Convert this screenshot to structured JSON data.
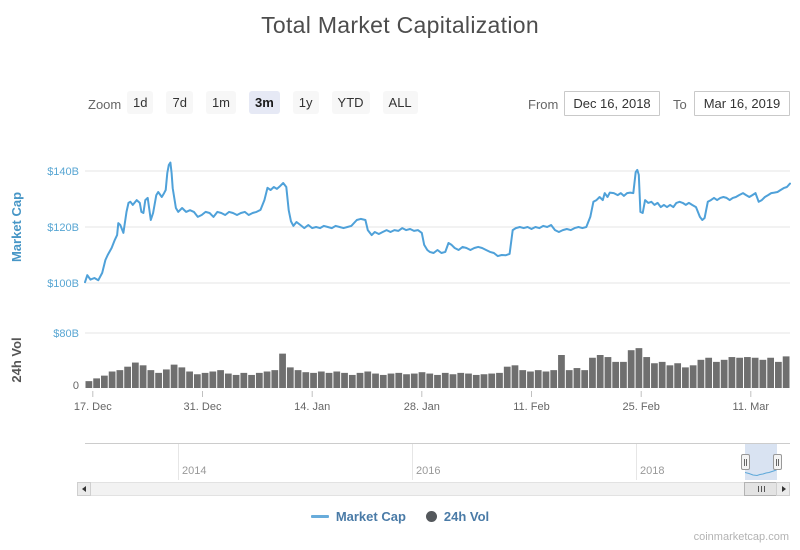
{
  "title": "Total Market Capitalization",
  "toolbar": {
    "zoom_label": "Zoom",
    "buttons": [
      {
        "label": "1d",
        "selected": false
      },
      {
        "label": "7d",
        "selected": false
      },
      {
        "label": "1m",
        "selected": false
      },
      {
        "label": "3m",
        "selected": true
      },
      {
        "label": "1y",
        "selected": false
      },
      {
        "label": "YTD",
        "selected": false
      },
      {
        "label": "ALL",
        "selected": false
      }
    ],
    "from_label": "From",
    "from_value": "Dec 16, 2018",
    "to_label": "To",
    "to_value": "Mar 16, 2019"
  },
  "chart_data": {
    "type": [
      "line",
      "bar"
    ],
    "x_axis": {
      "start": "Dec 16, 2018",
      "end": "Mar 16, 2019",
      "range_days": 90,
      "ticklabels": [
        "17. Dec",
        "31. Dec",
        "14. Jan",
        "28. Jan",
        "11. Feb",
        "25. Feb",
        "11. Mar"
      ],
      "tick_days": [
        1,
        15,
        29,
        43,
        57,
        71,
        85
      ]
    },
    "market_cap": {
      "name": "Market Cap",
      "type": "line",
      "unit": "USD billions",
      "color": "#4fa1d9",
      "ylim": [
        97,
        146
      ],
      "yticks": [
        {
          "label": "$100B",
          "value": 100
        },
        {
          "label": "$120B",
          "value": 120
        },
        {
          "label": "$140B",
          "value": 140
        }
      ],
      "axis_title": "Market Cap",
      "points": [
        [
          0,
          100.3
        ],
        [
          0.3,
          102.8
        ],
        [
          0.7,
          101.2
        ],
        [
          1.2,
          101.8
        ],
        [
          1.7,
          101
        ],
        [
          2.2,
          103.6
        ],
        [
          2.6,
          108.2
        ],
        [
          2.9,
          110
        ],
        [
          3.4,
          112.5
        ],
        [
          3.8,
          115.4
        ],
        [
          4.1,
          117.1
        ],
        [
          4.25,
          121.4
        ],
        [
          4.5,
          120.7
        ],
        [
          4.9,
          117.9
        ],
        [
          5.3,
          125.4
        ],
        [
          5.55,
          128.6
        ],
        [
          5.8,
          129
        ],
        [
          6.1,
          127.9
        ],
        [
          6.6,
          129.6
        ],
        [
          7,
          128.6
        ],
        [
          7.2,
          125.4
        ],
        [
          7.45,
          125
        ],
        [
          7.7,
          129.6
        ],
        [
          8,
          130.4
        ],
        [
          8.4,
          122.5
        ],
        [
          8.7,
          125
        ],
        [
          9.1,
          131.4
        ],
        [
          9.35,
          132.5
        ],
        [
          9.8,
          130.7
        ],
        [
          10.1,
          132.1
        ],
        [
          10.3,
          133.2
        ],
        [
          10.5,
          139.3
        ],
        [
          10.7,
          142.1
        ],
        [
          10.9,
          143
        ],
        [
          11.05,
          139.3
        ],
        [
          11.2,
          133.9
        ],
        [
          11.6,
          126.8
        ],
        [
          11.9,
          125.4
        ],
        [
          12.4,
          126.8
        ],
        [
          12.9,
          125.4
        ],
        [
          13.4,
          126
        ],
        [
          13.9,
          125.4
        ],
        [
          14.4,
          123.6
        ],
        [
          14.9,
          124.3
        ],
        [
          15.4,
          125.4
        ],
        [
          15.9,
          125
        ],
        [
          16.4,
          123.6
        ],
        [
          16.9,
          125.4
        ],
        [
          17.4,
          125
        ],
        [
          17.9,
          124.3
        ],
        [
          18.4,
          125.4
        ],
        [
          18.9,
          125
        ],
        [
          19.4,
          124.3
        ],
        [
          19.9,
          125
        ],
        [
          20.4,
          125.4
        ],
        [
          20.9,
          124.3
        ],
        [
          21.4,
          125
        ],
        [
          21.9,
          125.4
        ],
        [
          22.4,
          126.1
        ],
        [
          22.9,
          129.6
        ],
        [
          23.3,
          134
        ],
        [
          23.7,
          133.2
        ],
        [
          24.1,
          134.3
        ],
        [
          24.5,
          133.6
        ],
        [
          24.9,
          134.6
        ],
        [
          25.3,
          135.7
        ],
        [
          25.7,
          134.3
        ],
        [
          26,
          126
        ],
        [
          26.3,
          122
        ],
        [
          26.6,
          120.4
        ],
        [
          27,
          121.8
        ],
        [
          27.5,
          120.7
        ],
        [
          28,
          119.6
        ],
        [
          28.5,
          120.7
        ],
        [
          29,
          119.6
        ],
        [
          29.5,
          120
        ],
        [
          30,
          119.6
        ],
        [
          30.5,
          120.4
        ],
        [
          31,
          120
        ],
        [
          31.5,
          119.6
        ],
        [
          32,
          120.4
        ],
        [
          32.5,
          120
        ],
        [
          33,
          119.6
        ],
        [
          33.5,
          120
        ],
        [
          34,
          120.4
        ],
        [
          34.7,
          122.5
        ],
        [
          35.2,
          122.9
        ],
        [
          35.8,
          122.5
        ],
        [
          36.1,
          118.9
        ],
        [
          36.6,
          117.1
        ],
        [
          37,
          118.2
        ],
        [
          37.5,
          117.5
        ],
        [
          38,
          118.2
        ],
        [
          38.5,
          118.9
        ],
        [
          39,
          118.2
        ],
        [
          39.5,
          118.9
        ],
        [
          40,
          118.6
        ],
        [
          40.5,
          119.6
        ],
        [
          41,
          118.9
        ],
        [
          41.5,
          119.3
        ],
        [
          42,
          118.6
        ],
        [
          42.5,
          118.9
        ],
        [
          43,
          117.9
        ],
        [
          43.3,
          113.6
        ],
        [
          43.7,
          111.8
        ],
        [
          44,
          111.1
        ],
        [
          44.5,
          110.7
        ],
        [
          45,
          111.8
        ],
        [
          45.5,
          110.7
        ],
        [
          46,
          111.1
        ],
        [
          46.4,
          114.3
        ],
        [
          46.8,
          113.6
        ],
        [
          47.2,
          112.5
        ],
        [
          47.7,
          111.8
        ],
        [
          48.2,
          112.9
        ],
        [
          48.7,
          112.5
        ],
        [
          49.2,
          111.8
        ],
        [
          49.7,
          112.5
        ],
        [
          50.2,
          112.9
        ],
        [
          50.7,
          112.5
        ],
        [
          51.2,
          111.8
        ],
        [
          51.7,
          111.1
        ],
        [
          52.2,
          110.7
        ],
        [
          52.7,
          109.6
        ],
        [
          53.2,
          110
        ],
        [
          53.7,
          109.9
        ],
        [
          54.2,
          110.4
        ],
        [
          54.6,
          118.9
        ],
        [
          55,
          119.6
        ],
        [
          55.5,
          120
        ],
        [
          56,
          119.6
        ],
        [
          56.5,
          120
        ],
        [
          57,
          119.3
        ],
        [
          57.5,
          120
        ],
        [
          58,
          119.6
        ],
        [
          58.5,
          120.4
        ],
        [
          59,
          120
        ],
        [
          59.5,
          120.7
        ],
        [
          60,
          118.9
        ],
        [
          60.5,
          118.2
        ],
        [
          61,
          118.9
        ],
        [
          61.5,
          119.3
        ],
        [
          62,
          118.9
        ],
        [
          62.5,
          119.6
        ],
        [
          63,
          120
        ],
        [
          63.5,
          119.6
        ],
        [
          64,
          120
        ],
        [
          64.5,
          123.6
        ],
        [
          64.9,
          129
        ],
        [
          65.3,
          129.6
        ],
        [
          65.7,
          130.7
        ],
        [
          66.1,
          129.6
        ],
        [
          66.35,
          132.1
        ],
        [
          66.7,
          130.7
        ],
        [
          67,
          132.3
        ],
        [
          67.5,
          132.1
        ],
        [
          68,
          131.4
        ],
        [
          68.4,
          132.1
        ],
        [
          68.8,
          131.1
        ],
        [
          69.2,
          132.1
        ],
        [
          69.6,
          132.3
        ],
        [
          70,
          132.1
        ],
        [
          70.3,
          139.6
        ],
        [
          70.5,
          140.4
        ],
        [
          70.7,
          138.6
        ],
        [
          70.9,
          125.4
        ],
        [
          71.2,
          125
        ],
        [
          71.5,
          129.6
        ],
        [
          71.9,
          128.6
        ],
        [
          72.3,
          129
        ],
        [
          72.7,
          127.9
        ],
        [
          73.1,
          128.6
        ],
        [
          73.5,
          127.1
        ],
        [
          73.9,
          127.9
        ],
        [
          74.3,
          127.1
        ],
        [
          74.7,
          127.9
        ],
        [
          75.1,
          127.1
        ],
        [
          75.5,
          128.6
        ],
        [
          75.9,
          129
        ],
        [
          76.3,
          128.6
        ],
        [
          76.7,
          127.9
        ],
        [
          77.1,
          128.6
        ],
        [
          77.5,
          127.9
        ],
        [
          78,
          127.1
        ],
        [
          78.5,
          123.6
        ],
        [
          78.8,
          122.5
        ],
        [
          79.1,
          123.2
        ],
        [
          79.5,
          129
        ],
        [
          79.9,
          129.6
        ],
        [
          80.3,
          130.4
        ],
        [
          80.7,
          129.6
        ],
        [
          81.1,
          130.4
        ],
        [
          81.5,
          130.7
        ],
        [
          81.9,
          130.4
        ],
        [
          82.3,
          129.6
        ],
        [
          82.7,
          130.4
        ],
        [
          83.1,
          130.7
        ],
        [
          83.5,
          131.4
        ],
        [
          84,
          132.1
        ],
        [
          84.4,
          131.4
        ],
        [
          84.8,
          130.7
        ],
        [
          85.2,
          131.4
        ],
        [
          85.6,
          132.1
        ],
        [
          86,
          129
        ],
        [
          86.4,
          129.6
        ],
        [
          86.8,
          130.7
        ],
        [
          87.2,
          131.4
        ],
        [
          87.6,
          132.1
        ],
        [
          88,
          132.3
        ],
        [
          88.4,
          132.5
        ],
        [
          88.8,
          133.2
        ],
        [
          89.2,
          133.9
        ],
        [
          89.6,
          134.3
        ],
        [
          90,
          135.5
        ]
      ]
    },
    "volume_24h": {
      "name": "24h Vol",
      "type": "bar",
      "unit": "USD billions, daily",
      "color": "#6f6f6f",
      "ylim": [
        0,
        80
      ],
      "yticks": [
        {
          "label": "0",
          "value": 0
        },
        {
          "label": "$80B",
          "value": 80
        }
      ],
      "axis_title": "24h Vol",
      "values": [
        10,
        14,
        18,
        24,
        26,
        31,
        37,
        33,
        26,
        22,
        27,
        34,
        30,
        24,
        20,
        22,
        24,
        26,
        21,
        19,
        22,
        19,
        22,
        24,
        26,
        50,
        30,
        26,
        23,
        22,
        24,
        22,
        24,
        22,
        19,
        22,
        24,
        21,
        19,
        21,
        22,
        20,
        21,
        23,
        21,
        19,
        22,
        20,
        22,
        21,
        19,
        20,
        21,
        22,
        31,
        33,
        26,
        24,
        26,
        24,
        26,
        48,
        26,
        29,
        26,
        44,
        48,
        45,
        38,
        38,
        55,
        58,
        45,
        36,
        38,
        33,
        36,
        30,
        33,
        41,
        44,
        38,
        41,
        45,
        44,
        45,
        44,
        41,
        44,
        38,
        46
      ]
    }
  },
  "navigator": {
    "labels": [
      "2014",
      "2016",
      "2018"
    ]
  },
  "legend": [
    {
      "label": "Market Cap",
      "marker": "line",
      "color": "#68acdb"
    },
    {
      "label": "24h Vol",
      "marker": "circle",
      "color": "#54585c"
    }
  ],
  "watermark": "coinmarketcap.com"
}
